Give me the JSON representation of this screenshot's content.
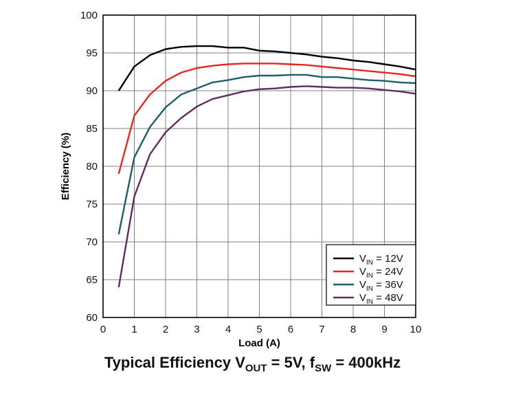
{
  "chart_data": {
    "type": "line",
    "xlabel": "Load (A)",
    "ylabel": "Efficiency (%)",
    "xlim": [
      0,
      10
    ],
    "ylim": [
      60,
      100
    ],
    "xticks": [
      0,
      1,
      2,
      3,
      4,
      5,
      6,
      7,
      8,
      9,
      10
    ],
    "yticks": [
      60,
      65,
      70,
      75,
      80,
      85,
      90,
      95,
      100
    ],
    "grid": true,
    "legend_position": "bottom-right",
    "caption": {
      "part1": "Typical Efficiency V",
      "sub1": "OUT",
      "part2": " = 5V, f",
      "sub2": "SW",
      "part3": " = 400kHz"
    },
    "x": [
      0.5,
      1,
      1.5,
      2,
      2.5,
      3,
      3.5,
      4,
      4.5,
      5,
      5.5,
      6,
      6.5,
      7,
      7.5,
      8,
      8.5,
      9,
      9.5,
      10
    ],
    "series": [
      {
        "name_main": "V",
        "name_sub": "IN",
        "name_rest": " = 12V",
        "color": "#000000",
        "values": [
          90.0,
          93.2,
          94.7,
          95.5,
          95.8,
          95.9,
          95.9,
          95.7,
          95.7,
          95.3,
          95.2,
          95.0,
          94.8,
          94.5,
          94.3,
          94.0,
          93.8,
          93.5,
          93.2,
          92.8
        ]
      },
      {
        "name_main": "V",
        "name_sub": "IN",
        "name_rest": " = 24V",
        "color": "#e8261d",
        "values": [
          79.0,
          86.7,
          89.5,
          91.3,
          92.4,
          93.0,
          93.3,
          93.5,
          93.6,
          93.6,
          93.6,
          93.5,
          93.4,
          93.2,
          93.0,
          92.8,
          92.6,
          92.4,
          92.2,
          91.9
        ]
      },
      {
        "name_main": "V",
        "name_sub": "IN",
        "name_rest": " = 36V",
        "color": "#1e5d6a",
        "values": [
          71.0,
          81.2,
          85.2,
          87.8,
          89.5,
          90.3,
          91.1,
          91.4,
          91.8,
          92.0,
          92.0,
          92.1,
          92.1,
          91.8,
          91.8,
          91.6,
          91.4,
          91.3,
          91.1,
          91.0
        ]
      },
      {
        "name_main": "V",
        "name_sub": "IN",
        "name_rest": " = 48V",
        "color": "#5e2d5f",
        "values": [
          64.0,
          76.0,
          81.6,
          84.5,
          86.4,
          87.9,
          88.9,
          89.4,
          89.9,
          90.2,
          90.3,
          90.5,
          90.6,
          90.5,
          90.4,
          90.4,
          90.3,
          90.1,
          89.9,
          89.6
        ]
      }
    ]
  }
}
